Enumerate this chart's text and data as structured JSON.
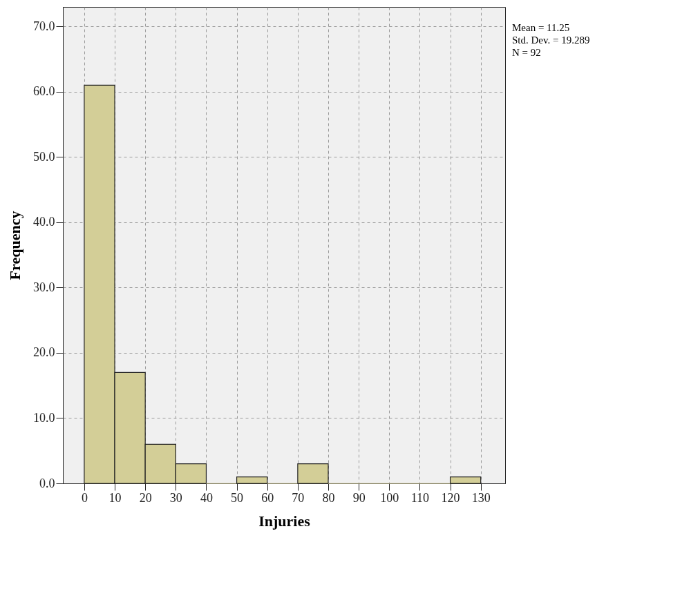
{
  "chart_data": {
    "type": "histogram",
    "xlabel": "Injuries",
    "ylabel": "Frequency",
    "bins": [
      0,
      10,
      20,
      30,
      40,
      50,
      60,
      70,
      80,
      90,
      100,
      110,
      120,
      130
    ],
    "values": [
      61,
      17,
      6,
      3,
      0,
      1,
      0,
      3,
      0,
      0,
      0,
      0,
      1
    ],
    "color": "#d3ce97",
    "xlim": [
      -7,
      138
    ],
    "xticks": [
      0,
      10,
      20,
      30,
      40,
      50,
      60,
      70,
      80,
      90,
      100,
      110,
      120,
      130
    ],
    "ylim": [
      0,
      73
    ],
    "yticks": [
      {
        "value": 0,
        "label": "0.0"
      },
      {
        "value": 10,
        "label": "10.0"
      },
      {
        "value": 20,
        "label": "20.0"
      },
      {
        "value": 30,
        "label": "30.0"
      },
      {
        "value": 40,
        "label": "40.0"
      },
      {
        "value": 50,
        "label": "50.0"
      },
      {
        "value": 60,
        "label": "60.0"
      },
      {
        "value": 70,
        "label": "70.0"
      }
    ],
    "grid": true,
    "annotations": [
      "Mean = 11.25",
      "Std. Dev. = 19.289",
      "N = 92"
    ]
  }
}
